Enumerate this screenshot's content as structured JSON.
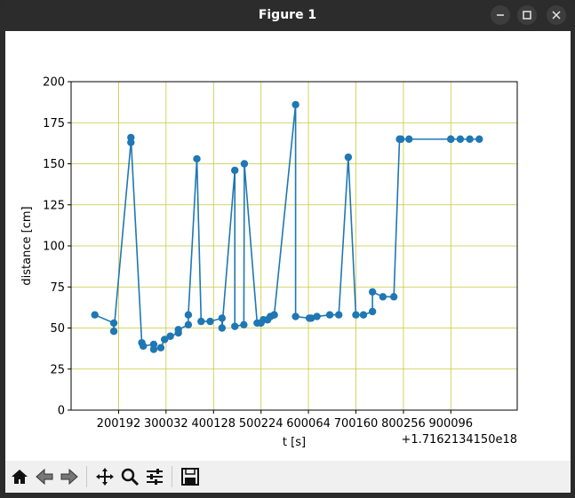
{
  "window": {
    "title": "Figure 1"
  },
  "toolbar": {
    "buttons": [
      "home-icon",
      "back-icon",
      "forward-icon",
      "pan-icon",
      "zoom-icon",
      "configure-subplots-icon",
      "save-icon"
    ]
  },
  "chart_data": {
    "type": "line",
    "xlabel": "t [s]",
    "ylabel": "distance [cm]",
    "offset_label": "+1.7162134150e18",
    "ylim": [
      0,
      200
    ],
    "xlim": [
      100000,
      1040000
    ],
    "yticks": [
      0,
      25,
      50,
      75,
      100,
      125,
      150,
      175,
      200
    ],
    "xticks": [
      {
        "value": 200192,
        "label": "200192"
      },
      {
        "value": 300032,
        "label": "300032"
      },
      {
        "value": 400128,
        "label": "400128"
      },
      {
        "value": 500224,
        "label": "500224"
      },
      {
        "value": 600064,
        "label": "600064"
      },
      {
        "value": 700160,
        "label": "700160"
      },
      {
        "value": 800256,
        "label": "800256"
      },
      {
        "value": 900096,
        "label": "900096"
      }
    ],
    "grid": true,
    "grid_color": "#c8c83c",
    "line_color": "#1f77b4",
    "marker": "circle",
    "series": [
      {
        "x": [
          150000,
          190000,
          190000,
          226000,
          226000,
          249000,
          252000,
          274000,
          274000,
          289000,
          297000,
          309000,
          326000,
          326000,
          347000,
          347000,
          365000,
          374000,
          393000,
          418000,
          418000,
          445000,
          445000,
          464000,
          465000,
          492000,
          500000,
          505000,
          514000,
          520000,
          520000,
          528000,
          528000,
          573000,
          573000,
          602000,
          606000,
          618000,
          645000,
          664000,
          684000,
          700000,
          716000,
          735000,
          735000,
          757000,
          780000,
          792000,
          795000,
          812000,
          900000,
          900000,
          920000,
          940000,
          960000
        ],
        "y": [
          58,
          53,
          48,
          163,
          166,
          41,
          39,
          40,
          37,
          38,
          43,
          45,
          47,
          49,
          52,
          58,
          153,
          54,
          54,
          56,
          50,
          146,
          51,
          52,
          150,
          53,
          53,
          55,
          55,
          57,
          57,
          58,
          58,
          186,
          57,
          56,
          56,
          57,
          58,
          58,
          154,
          58,
          58,
          60,
          72,
          69,
          69,
          165,
          165,
          165,
          165,
          165,
          165,
          165,
          165
        ]
      }
    ]
  }
}
